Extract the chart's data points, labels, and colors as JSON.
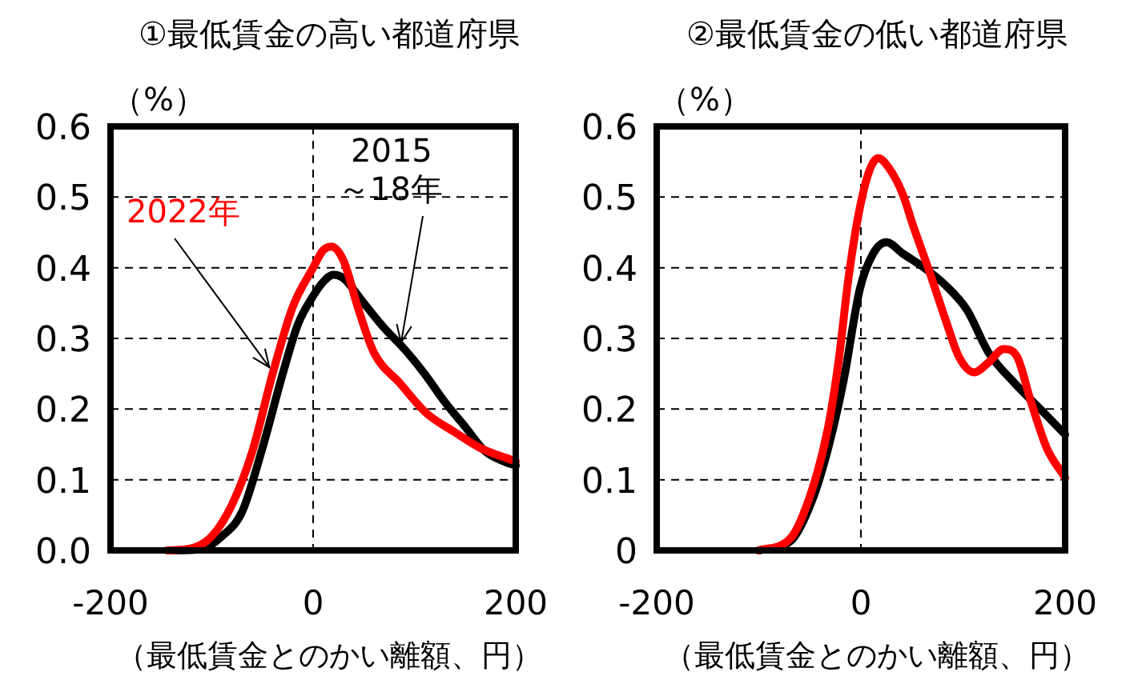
{
  "chart_data": [
    {
      "type": "line",
      "title": "①最低賃金の高い都道府県",
      "ylabel": "（%）",
      "xlabel": "（最低賃金とのかい離額、円）",
      "xlim": [
        -200,
        200
      ],
      "xticks": [
        -200,
        0,
        200
      ],
      "ylim": [
        0,
        0.6
      ],
      "yticks": [
        {
          "value": 0,
          "label": "0.0"
        },
        0.1,
        0.2,
        0.3,
        0.4,
        0.5,
        0.6
      ],
      "grid": true,
      "series": [
        {
          "name": "2015\n～18年",
          "color": "#000000",
          "x": [
            -140,
            -110,
            -90,
            -70,
            -50,
            -30,
            -15,
            0,
            10,
            20,
            30,
            50,
            70,
            90,
            110,
            130,
            150,
            170,
            190,
            200
          ],
          "values": [
            0,
            0.002,
            0.02,
            0.055,
            0.145,
            0.25,
            0.32,
            0.36,
            0.38,
            0.39,
            0.385,
            0.35,
            0.315,
            0.285,
            0.25,
            0.21,
            0.175,
            0.14,
            0.125,
            0.12
          ]
        },
        {
          "name": "2022年",
          "color": "#ff0000",
          "x": [
            -144,
            -120,
            -100,
            -80,
            -60,
            -40,
            -20,
            0,
            10,
            18,
            30,
            45,
            60,
            86,
            112,
            139,
            165,
            200
          ],
          "values": [
            0,
            0.003,
            0.02,
            0.065,
            0.14,
            0.25,
            0.345,
            0.4,
            0.425,
            0.43,
            0.41,
            0.34,
            0.28,
            0.236,
            0.194,
            0.168,
            0.145,
            0.126
          ]
        }
      ]
    },
    {
      "type": "line",
      "title": "②最低賃金の低い都道府県",
      "ylabel": "（%）",
      "xlabel": "（最低賃金とのかい離額、円）",
      "xlim": [
        -200,
        200
      ],
      "xticks": [
        -200,
        0,
        200
      ],
      "ylim": [
        0,
        0.6
      ],
      "yticks": [
        0,
        0.1,
        0.2,
        0.3,
        0.4,
        0.5,
        0.6
      ],
      "grid": true,
      "series": [
        {
          "color": "#000000",
          "x": [
            -100,
            -69,
            -48,
            -32,
            -17,
            -1,
            12,
            25,
            41,
            62,
            83,
            104,
            125,
            151,
            177,
            200
          ],
          "values": [
            0,
            0.013,
            0.07,
            0.145,
            0.24,
            0.37,
            0.42,
            0.436,
            0.42,
            0.4,
            0.375,
            0.34,
            0.28,
            0.236,
            0.198,
            0.164
          ]
        },
        {
          "color": "#ff0000",
          "x": [
            -100,
            -69,
            -48,
            -32,
            -22,
            -12,
            -1,
            9,
            17,
            28,
            41,
            51,
            67,
            83,
            96,
            111,
            125,
            140,
            153,
            166,
            182,
            200
          ],
          "values": [
            0,
            0.017,
            0.085,
            0.175,
            0.266,
            0.387,
            0.485,
            0.54,
            0.555,
            0.54,
            0.504,
            0.46,
            0.395,
            0.326,
            0.274,
            0.252,
            0.266,
            0.285,
            0.274,
            0.213,
            0.145,
            0.103
          ]
        }
      ]
    }
  ]
}
